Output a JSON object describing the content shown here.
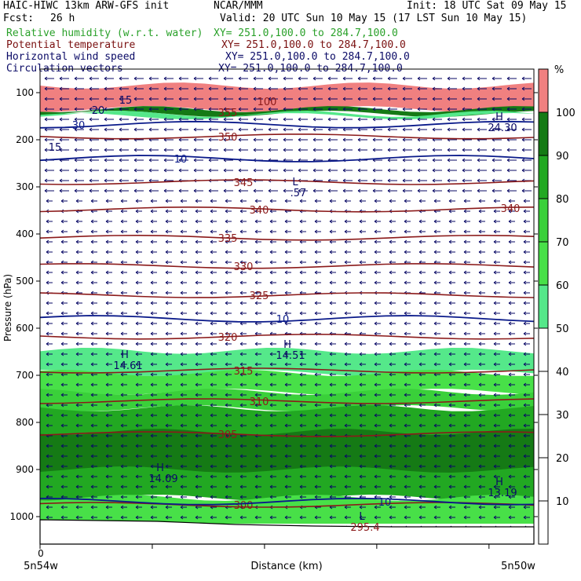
{
  "header": {
    "model": "HAIC-HIWC 13km ARW-GFS init",
    "center": "NCAR/MMM",
    "init": "Init: 18 UTC Sat 09 May 15",
    "fcst_label": "Fcst:",
    "fcst_value": "26 h",
    "valid": "Valid: 20 UTC Sun 10 May 15 (17 LST Sun 10 May 15)"
  },
  "fields": [
    {
      "name": "Relative humidity (w.r.t. water)",
      "xy": "XY= 251.0,100.0 to 284.7,100.0",
      "color": "#2aa12a"
    },
    {
      "name": "Potential temperature",
      "xy": "XY= 251.0,100.0 to 284.7,100.0",
      "color": "#7a1010"
    },
    {
      "name": "Horizontal wind speed",
      "xy": "XY= 251.0,100.0 to 284.7,100.0",
      "color": "#0a0a66"
    },
    {
      "name": "Circulation vectors",
      "xy": "XY= 251.0,100.0 to 284.7,100.0",
      "color": "#0a0a66"
    }
  ],
  "chart_data": {
    "type": "heatmap",
    "ylabel": "Pressure (hPa)",
    "xlabel": "Distance (km)",
    "x_tick_labels": [
      "0"
    ],
    "x_endpoints": [
      "5n54w",
      "5n50w"
    ],
    "y_ticks": [
      100,
      200,
      300,
      400,
      500,
      600,
      700,
      800,
      900,
      1000
    ],
    "colorbar": {
      "unit": "%",
      "levels": [
        10,
        20,
        30,
        40,
        50,
        60,
        70,
        80,
        90,
        100
      ],
      "fill_colors": [
        {
          "from": 50,
          "to": 60,
          "color": "#55e88a"
        },
        {
          "from": 60,
          "to": 70,
          "color": "#48e048"
        },
        {
          "from": 70,
          "to": 80,
          "color": "#3ad03a"
        },
        {
          "from": 80,
          "to": 90,
          "color": "#22a822"
        },
        {
          "from": 90,
          "to": 100,
          "color": "#157a15"
        },
        {
          "from": 100,
          "to": 110,
          "color": "#f08080"
        }
      ]
    },
    "rh_layers": [
      {
        "rh_min": 100,
        "p_top": 85,
        "p_bottom": 135
      },
      {
        "rh_min": 90,
        "p_top": 135,
        "p_bottom": 145
      },
      {
        "rh_min": 50,
        "p_top": 145,
        "p_bottom": 150
      },
      {
        "rh_min": 50,
        "p_top": 648,
        "p_bottom": 695
      },
      {
        "rh_min": 60,
        "p_top": 695,
        "p_bottom": 735
      },
      {
        "rh_min": 70,
        "p_top": 735,
        "p_bottom": 770
      },
      {
        "rh_min": 80,
        "p_top": 770,
        "p_bottom": 960
      },
      {
        "rh_min": 90,
        "p_top": 820,
        "p_bottom": 900
      },
      {
        "rh_min": 60,
        "p_top": 960,
        "p_bottom": 1015
      }
    ],
    "theta_contours": [
      {
        "value": 350,
        "p": 193,
        "label": "350"
      },
      {
        "value": 345,
        "p": 290,
        "label": "345"
      },
      {
        "value": 340,
        "p": 348,
        "label": "340"
      },
      {
        "value": 335,
        "p": 408,
        "label": "335"
      },
      {
        "value": 330,
        "p": 468,
        "label": "330"
      },
      {
        "value": 325,
        "p": 530,
        "label": "325"
      },
      {
        "value": 320,
        "p": 618,
        "label": "320"
      },
      {
        "value": 315,
        "p": 690,
        "label": "315"
      },
      {
        "value": 310,
        "p": 755,
        "label": "310"
      },
      {
        "value": 305,
        "p": 825,
        "label": "305"
      },
      {
        "value": 300,
        "p": 975,
        "label": "300"
      }
    ],
    "wind_contours": [
      {
        "value": 30,
        "p": 168,
        "label": "30"
      },
      {
        "value": 10,
        "p": 240,
        "label": "10"
      },
      {
        "value": 10,
        "p": 580,
        "label": "10"
      },
      {
        "value": 10,
        "p": 968,
        "label": "10"
      }
    ],
    "theta_labels_extra": [
      "355",
      "100",
      "340"
    ],
    "wind_labels_extra": [
      "20",
      "15",
      "15"
    ],
    "extrema": [
      {
        "kind": "H",
        "value": "14.61"
      },
      {
        "kind": "H",
        "value": "14.51"
      },
      {
        "kind": "H",
        "value": "14.09"
      },
      {
        "kind": "H",
        "value": "13.19"
      },
      {
        "kind": "H",
        "value": "24.30"
      },
      {
        "kind": "L",
        "value": "295.4"
      },
      {
        "kind": "L",
        "value": ".57"
      }
    ],
    "wind_direction": "easterly"
  }
}
